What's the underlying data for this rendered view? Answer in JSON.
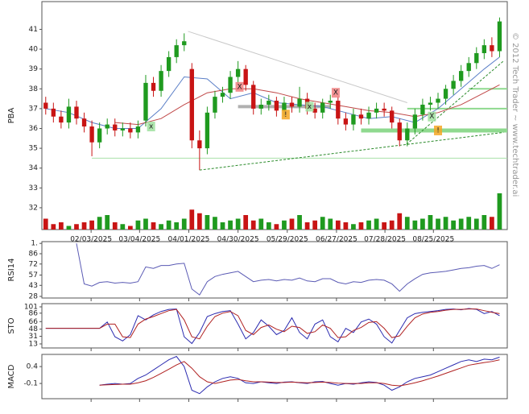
{
  "chart_data": [
    {
      "type": "candlestick",
      "ylabel": "PBA",
      "watermark": "© 2012 Tech Trader ~ www.techtrader.ai",
      "xlim": [
        -0.5,
        60
      ],
      "ylim": [
        30.9,
        42.4
      ],
      "yticks": [
        32,
        33,
        34,
        35,
        36,
        37,
        38,
        39,
        40,
        41
      ],
      "xticks": [
        {
          "value": 5.9,
          "label": "02/03/2025"
        },
        {
          "value": 12.2,
          "label": "03/04/2025"
        },
        {
          "value": 18.6,
          "label": "04/01/2025"
        },
        {
          "value": 25.0,
          "label": "04/30/2025"
        },
        {
          "value": 31.4,
          "label": "05/29/2025"
        },
        {
          "value": 37.8,
          "label": "06/27/2025"
        },
        {
          "value": 44.1,
          "label": "07/28/2025"
        },
        {
          "value": 50.4,
          "label": "08/25/2025"
        }
      ],
      "up_color": "#1f9a1f",
      "down_color": "#c81414",
      "open": [
        37.3,
        37.0,
        36.6,
        36.3,
        37.1,
        36.5,
        36.1,
        35.3,
        36.0,
        36.2,
        35.9,
        36.0,
        35.8,
        36.4,
        38.3,
        37.9,
        38.9,
        39.6,
        40.2,
        39.0,
        35.4,
        35.0,
        36.8,
        37.6,
        37.8,
        38.6,
        39.0,
        38.2,
        37.0,
        37.2,
        37.4,
        36.9,
        37.3,
        37.1,
        37.5,
        37.0,
        36.8,
        37.3,
        37.4,
        36.5,
        36.2,
        36.7,
        36.5,
        36.8,
        37.0,
        36.9,
        36.3,
        35.4,
        36.0,
        36.7,
        37.2,
        37.3,
        37.5,
        38.0,
        38.4,
        38.9,
        39.3,
        39.8,
        40.2,
        39.9
      ],
      "high": [
        37.6,
        37.3,
        36.9,
        37.5,
        37.4,
        36.8,
        36.4,
        36.3,
        36.5,
        36.5,
        36.3,
        36.3,
        36.4,
        38.7,
        38.6,
        39.2,
        39.9,
        40.5,
        40.8,
        39.3,
        35.9,
        37.1,
        37.9,
        38.1,
        38.9,
        39.4,
        39.2,
        38.4,
        37.5,
        37.7,
        37.6,
        37.6,
        37.6,
        38.1,
        37.8,
        37.3,
        37.5,
        37.7,
        37.6,
        36.8,
        37.0,
        37.0,
        37.1,
        37.3,
        37.3,
        37.1,
        36.5,
        36.3,
        37.0,
        37.5,
        37.6,
        37.8,
        38.2,
        38.7,
        39.2,
        39.6,
        40.1,
        40.5,
        40.6,
        41.6
      ],
      "low": [
        36.7,
        36.3,
        36.0,
        36.0,
        36.2,
        35.8,
        34.6,
        35.0,
        35.7,
        35.6,
        35.6,
        35.5,
        35.5,
        36.1,
        37.6,
        37.6,
        38.6,
        39.3,
        39.9,
        35.0,
        33.9,
        34.7,
        36.5,
        37.3,
        37.5,
        38.3,
        37.9,
        36.7,
        36.7,
        36.9,
        36.6,
        36.6,
        36.8,
        36.8,
        36.7,
        36.5,
        36.5,
        37.0,
        36.2,
        35.9,
        35.9,
        36.2,
        36.2,
        36.5,
        36.6,
        36.0,
        35.1,
        35.1,
        35.7,
        36.4,
        36.9,
        37.0,
        37.2,
        37.7,
        38.1,
        38.6,
        39.0,
        39.5,
        39.6,
        39.6
      ],
      "close": [
        37.0,
        36.6,
        36.3,
        37.1,
        36.5,
        36.1,
        35.3,
        36.0,
        36.2,
        35.9,
        36.0,
        35.8,
        36.1,
        38.3,
        37.9,
        38.9,
        39.6,
        40.2,
        40.4,
        35.4,
        35.0,
        36.8,
        37.6,
        37.8,
        38.6,
        39.0,
        38.2,
        37.0,
        37.2,
        37.4,
        36.9,
        37.3,
        37.1,
        37.5,
        37.0,
        36.8,
        37.3,
        37.4,
        36.5,
        36.2,
        36.7,
        36.5,
        36.8,
        37.0,
        36.9,
        36.3,
        35.4,
        36.0,
        36.7,
        37.2,
        37.3,
        37.5,
        38.0,
        38.4,
        38.9,
        39.3,
        39.8,
        40.2,
        39.9,
        41.4
      ],
      "volume": [
        30,
        15,
        20,
        10,
        15,
        20,
        25,
        35,
        40,
        20,
        15,
        10,
        25,
        30,
        20,
        15,
        25,
        20,
        30,
        55,
        45,
        40,
        35,
        20,
        25,
        30,
        40,
        25,
        30,
        20,
        15,
        25,
        30,
        40,
        20,
        25,
        35,
        30,
        25,
        20,
        15,
        20,
        25,
        30,
        20,
        25,
        45,
        35,
        25,
        30,
        40,
        30,
        35,
        25,
        30,
        35,
        30,
        40,
        35,
        100
      ],
      "overlays": [
        {
          "color": "#5b7fc7",
          "x": [
            0,
            3,
            6,
            9,
            12,
            15,
            18,
            21,
            24,
            27,
            30,
            33,
            36,
            39,
            42,
            45,
            48,
            51,
            54,
            57,
            59
          ],
          "values": [
            37.0,
            36.8,
            36.3,
            36.0,
            36.0,
            37.0,
            38.6,
            38.5,
            37.5,
            37.8,
            37.3,
            37.2,
            37.1,
            36.8,
            36.5,
            36.6,
            36.3,
            37.0,
            38.0,
            39.0,
            39.6
          ]
        },
        {
          "color": "#c04848",
          "x": [
            9,
            12,
            15,
            18,
            21,
            24,
            27,
            30,
            33,
            36,
            39,
            42,
            45,
            48,
            51,
            54,
            57,
            59
          ],
          "values": [
            36.3,
            36.2,
            36.5,
            37.2,
            37.8,
            38.0,
            38.0,
            37.8,
            37.5,
            37.3,
            37.1,
            36.9,
            36.8,
            36.6,
            36.8,
            37.2,
            37.8,
            38.2
          ]
        }
      ],
      "lines": [
        {
          "x": [
            6,
            60
          ],
          "y": [
            34.5,
            34.5
          ],
          "color": "#a8e0a8",
          "width": 1,
          "dash": false
        },
        {
          "x": [
            41,
            60
          ],
          "y": [
            35.9,
            35.9
          ],
          "color": "#8fd98f",
          "width": 5,
          "dash": false
        },
        {
          "x": [
            47,
            60
          ],
          "y": [
            37.0,
            37.0
          ],
          "color": "#8fd98f",
          "width": 2,
          "dash": false
        },
        {
          "x": [
            55,
            60
          ],
          "y": [
            38.0,
            38.0
          ],
          "color": "#8fd98f",
          "width": 2,
          "dash": false
        },
        {
          "x": [
            25,
            37
          ],
          "y": [
            37.1,
            37.1
          ],
          "color": "#b0b0b0",
          "width": 4,
          "dash": false
        },
        {
          "x": [
            18.5,
            47
          ],
          "y": [
            40.9,
            37.3
          ],
          "color": "#c8c8c8",
          "width": 1,
          "dash": false
        },
        {
          "x": [
            20,
            59.5
          ],
          "y": [
            33.9,
            35.8
          ],
          "color": "#2a8a2a",
          "width": 1,
          "dash": true
        },
        {
          "x": [
            46.9,
            59.5
          ],
          "y": [
            35.2,
            39.4
          ],
          "color": "#2a8a2a",
          "width": 1,
          "dash": true
        }
      ],
      "markers": [
        {
          "x": 13.7,
          "y": 36.1,
          "label": "x",
          "color": "#9fe09f"
        },
        {
          "x": 25.2,
          "y": 38.1,
          "label": "X",
          "color": "#f08080"
        },
        {
          "x": 34.3,
          "y": 37.1,
          "label": "x",
          "color": "#9fe09f"
        },
        {
          "x": 37.7,
          "y": 37.8,
          "label": "X",
          "color": "#f08080"
        },
        {
          "x": 50.2,
          "y": 36.6,
          "label": "X",
          "color": "#9fe09f"
        },
        {
          "x": 31.2,
          "y": 36.7,
          "label": "!",
          "color": "#f5a623"
        },
        {
          "x": 51.0,
          "y": 35.9,
          "label": "!",
          "color": "#f5a623"
        }
      ]
    },
    {
      "type": "line",
      "ylabel": "RSI14",
      "ylim": [
        25.8,
        102.4
      ],
      "yticks": [
        {
          "value": 100,
          "label": "1."
        },
        86,
        72,
        57,
        43,
        28
      ],
      "series": [
        {
          "color": "#5a5ab4",
          "values": [
            null,
            null,
            null,
            null,
            100,
            45,
            42,
            47,
            48,
            46,
            47,
            46,
            48,
            68,
            66,
            70,
            70,
            72,
            73,
            38,
            30,
            48,
            55,
            58,
            60,
            62,
            55,
            48,
            50,
            51,
            49,
            51,
            50,
            53,
            49,
            48,
            52,
            52,
            47,
            45,
            48,
            47,
            50,
            51,
            50,
            45,
            35,
            45,
            52,
            58,
            60,
            61,
            62,
            64,
            66,
            67,
            69,
            70,
            66,
            71
          ]
        }
      ]
    },
    {
      "type": "line",
      "ylabel": "STO",
      "ylim": [
        3.4,
        108.6
      ],
      "yticks": [
        101,
        86,
        66,
        48,
        31,
        13
      ],
      "series": [
        {
          "color": "#2b2bb0",
          "values": [
            50,
            50,
            50,
            50,
            50,
            50,
            50,
            50,
            65,
            30,
            20,
            35,
            80,
            70,
            82,
            90,
            95,
            96,
            30,
            14,
            40,
            78,
            85,
            90,
            92,
            60,
            25,
            40,
            70,
            55,
            35,
            45,
            75,
            40,
            25,
            60,
            70,
            30,
            18,
            50,
            40,
            65,
            72,
            60,
            30,
            15,
            45,
            75,
            85,
            88,
            90,
            92,
            95,
            96,
            94,
            97,
            95,
            85,
            90,
            80
          ]
        },
        {
          "color": "#b02020",
          "values": [
            50,
            50,
            50,
            50,
            50,
            50,
            50,
            50,
            60,
            60,
            30,
            28,
            60,
            72,
            78,
            85,
            92,
            95,
            70,
            30,
            25,
            55,
            78,
            86,
            90,
            80,
            45,
            35,
            52,
            58,
            48,
            42,
            55,
            52,
            38,
            42,
            58,
            50,
            28,
            30,
            45,
            52,
            64,
            66,
            50,
            28,
            32,
            55,
            75,
            84,
            88,
            90,
            93,
            95,
            95,
            96,
            96,
            92,
            88,
            85
          ]
        }
      ]
    },
    {
      "type": "line",
      "ylabel": "MACD",
      "ylim": [
        -0.55,
        0.76
      ],
      "yticks": [
        0.4,
        -0.1
      ],
      "series": [
        {
          "color": "#2b2bb0",
          "values": [
            null,
            null,
            null,
            null,
            null,
            null,
            null,
            -0.15,
            -0.12,
            -0.1,
            -0.12,
            -0.1,
            0.05,
            0.15,
            0.3,
            0.45,
            0.6,
            0.7,
            0.4,
            -0.3,
            -0.4,
            -0.2,
            -0.05,
            0.05,
            0.1,
            0.05,
            -0.08,
            -0.1,
            -0.05,
            -0.08,
            -0.1,
            -0.06,
            -0.05,
            -0.08,
            -0.1,
            -0.05,
            -0.04,
            -0.1,
            -0.15,
            -0.1,
            -0.12,
            -0.08,
            -0.05,
            -0.07,
            -0.15,
            -0.3,
            -0.2,
            -0.05,
            0.05,
            0.1,
            0.15,
            0.25,
            0.35,
            0.45,
            0.55,
            0.6,
            0.55,
            0.62,
            0.6,
            0.68
          ]
        },
        {
          "color": "#b02020",
          "values": [
            null,
            null,
            null,
            null,
            null,
            null,
            null,
            -0.15,
            -0.14,
            -0.13,
            -0.12,
            -0.12,
            -0.08,
            -0.02,
            0.08,
            0.2,
            0.32,
            0.45,
            0.55,
            0.35,
            0.1,
            -0.05,
            -0.1,
            -0.05,
            0.0,
            0.02,
            -0.02,
            -0.05,
            -0.05,
            -0.06,
            -0.07,
            -0.07,
            -0.06,
            -0.07,
            -0.08,
            -0.07,
            -0.06,
            -0.07,
            -0.09,
            -0.1,
            -0.1,
            -0.1,
            -0.08,
            -0.08,
            -0.1,
            -0.15,
            -0.17,
            -0.13,
            -0.08,
            -0.02,
            0.05,
            0.12,
            0.2,
            0.28,
            0.36,
            0.44,
            0.48,
            0.52,
            0.55,
            0.6
          ]
        }
      ]
    }
  ]
}
